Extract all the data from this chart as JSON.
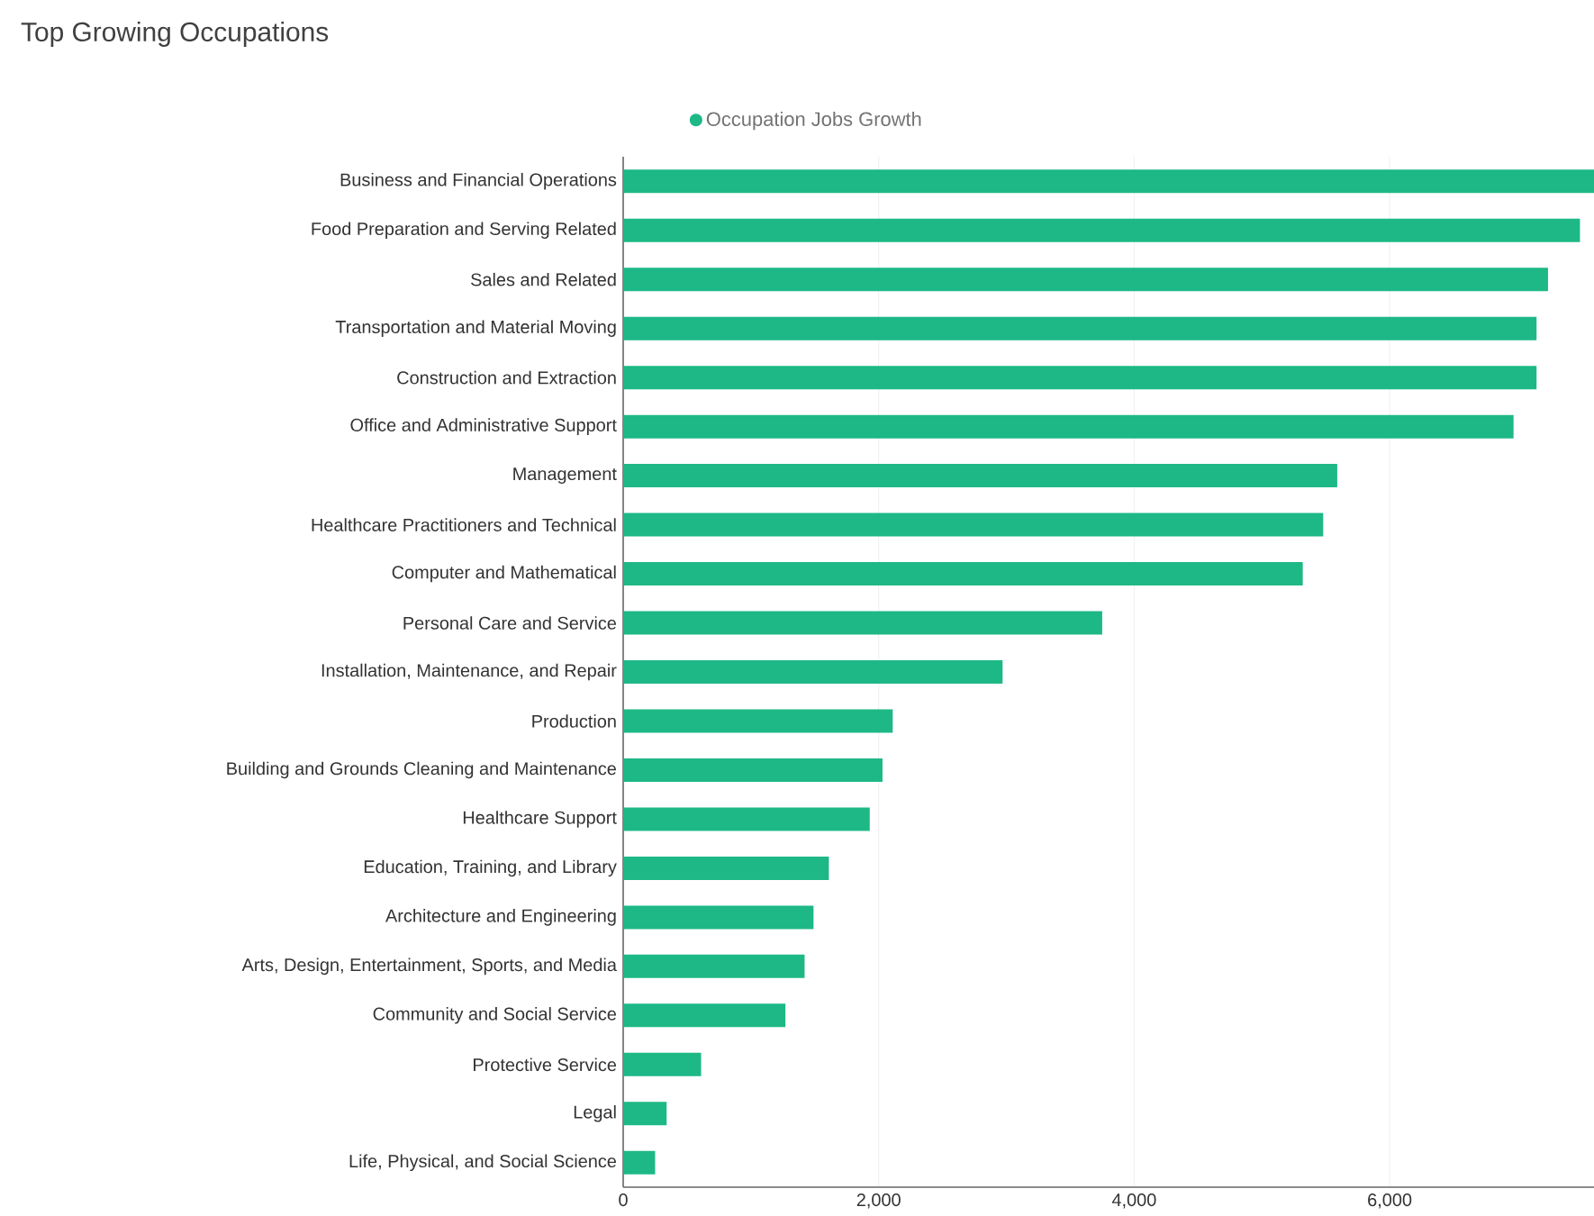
{
  "chart_data": {
    "type": "bar",
    "orientation": "horizontal",
    "title": "Top Growing Occupations",
    "categories": [
      "Business and Financial Operations",
      "Food Preparation and Serving Related",
      "Sales and Related",
      "Transportation and Material Moving",
      "Construction and Extraction",
      "Office and Administrative Support",
      "Management",
      "Healthcare Practitioners and Technical",
      "Computer and Mathematical",
      "Personal Care and Service",
      "Installation, Maintenance, and Repair",
      "Production",
      "Building and Grounds Cleaning and Maintenance",
      "Healthcare Support",
      "Education, Training, and Library",
      "Architecture and Engineering",
      "Arts, Design, Entertainment, Sports, and Media",
      "Community and Social Service",
      "Protective Service",
      "Legal",
      "Life, Physical, and Social Science"
    ],
    "series": [
      {
        "name": "Occupation Jobs Growth",
        "color": "#1db886",
        "values": [
          7600,
          7490,
          7240,
          7150,
          7150,
          6970,
          5590,
          5480,
          5320,
          3750,
          2970,
          2110,
          2030,
          1930,
          1610,
          1490,
          1420,
          1270,
          610,
          340,
          250
        ]
      }
    ],
    "xlim": [
      0,
      7600
    ],
    "xticks": [
      0,
      {
        "value": 2000,
        "label": "2,000"
      },
      {
        "value": 4000,
        "label": "4,000"
      },
      {
        "value": 6000,
        "label": "6,000"
      }
    ],
    "grid": "x",
    "legend": "top"
  }
}
